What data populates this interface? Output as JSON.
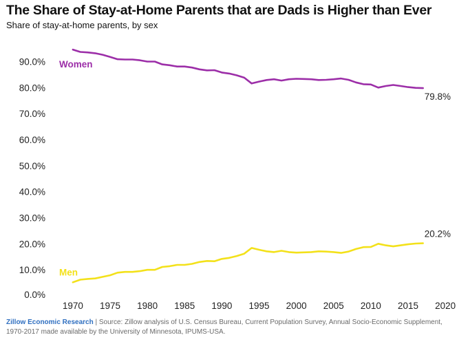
{
  "title": "The Share of Stay-at-Home Parents that are Dads is Higher than Ever",
  "subtitle": "Share of stay-at-home parents, by sex",
  "footer": {
    "brand": "Zillow Economic Research",
    "separator": " | ",
    "source": "Source: Zillow analysis of U.S. Census Bureau, Current Population Survey, Annual Socio-Economic Supplement, 1970-2017 made available by the University of Minnesota, IPUMS-USA."
  },
  "chart_data": {
    "type": "line",
    "title": "The Share of Stay-at-Home Parents that are Dads is Higher than Ever",
    "xlabel": "",
    "ylabel": "Share of stay-at-home parents, by sex",
    "xlim": [
      1966.5,
      2021
    ],
    "ylim": [
      0,
      97
    ],
    "x_ticks": [
      1970,
      1975,
      1980,
      1985,
      1990,
      1995,
      2000,
      2005,
      2010,
      2015,
      2020
    ],
    "y_ticks": [
      0,
      10,
      20,
      30,
      40,
      50,
      60,
      70,
      80,
      90
    ],
    "y_tick_labels": [
      "0.0%",
      "10.0%",
      "20.0%",
      "30.0%",
      "40.0%",
      "50.0%",
      "60.0%",
      "70.0%",
      "80.0%",
      "90.0%"
    ],
    "grid": false,
    "x": [
      1970,
      1971,
      1972,
      1973,
      1974,
      1975,
      1976,
      1977,
      1978,
      1979,
      1980,
      1981,
      1982,
      1983,
      1984,
      1985,
      1986,
      1987,
      1988,
      1989,
      1990,
      1991,
      1992,
      1993,
      1994,
      1995,
      1996,
      1997,
      1998,
      1999,
      2000,
      2001,
      2002,
      2003,
      2004,
      2005,
      2006,
      2007,
      2008,
      2009,
      2010,
      2011,
      2012,
      2013,
      2014,
      2015,
      2016,
      2017
    ],
    "series": [
      {
        "name": "Women",
        "color": "#9c2ea8",
        "values": [
          94.6,
          93.7,
          93.5,
          93.2,
          92.6,
          91.8,
          90.9,
          90.8,
          90.8,
          90.5,
          90.0,
          90.0,
          88.9,
          88.6,
          88.1,
          88.1,
          87.7,
          87.0,
          86.6,
          86.7,
          85.8,
          85.4,
          84.7,
          83.8,
          81.6,
          82.3,
          82.9,
          83.2,
          82.7,
          83.2,
          83.4,
          83.3,
          83.2,
          82.9,
          83.0,
          83.2,
          83.5,
          83.0,
          82.0,
          81.3,
          81.2,
          80.0,
          80.6,
          81.0,
          80.6,
          80.2,
          79.9,
          79.8
        ],
        "label": "Women",
        "end_label": "79.8%"
      },
      {
        "name": "Men",
        "color": "#f3e11a",
        "values": [
          5.2,
          6.2,
          6.5,
          6.7,
          7.3,
          7.9,
          8.9,
          9.2,
          9.2,
          9.5,
          10.0,
          10.0,
          11.1,
          11.4,
          11.9,
          11.9,
          12.3,
          13.0,
          13.4,
          13.3,
          14.2,
          14.6,
          15.3,
          16.2,
          18.4,
          17.7,
          17.1,
          16.8,
          17.3,
          16.8,
          16.6,
          16.7,
          16.8,
          17.1,
          17.0,
          16.8,
          16.5,
          17.0,
          18.0,
          18.7,
          18.8,
          20.0,
          19.4,
          19.0,
          19.4,
          19.8,
          20.1,
          20.2
        ],
        "label": "Men",
        "end_label": "20.2%"
      }
    ]
  }
}
